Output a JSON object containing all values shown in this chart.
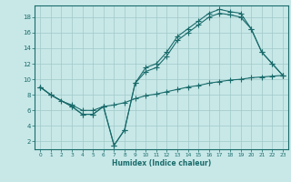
{
  "xlabel": "Humidex (Indice chaleur)",
  "bg_color": "#c8e8e8",
  "grid_color": "#a0c8c8",
  "line_color": "#1a6b6b",
  "xlim": [
    -0.5,
    23.5
  ],
  "ylim": [
    1,
    19.5
  ],
  "xticks": [
    0,
    1,
    2,
    3,
    4,
    5,
    6,
    7,
    8,
    9,
    10,
    11,
    12,
    13,
    14,
    15,
    16,
    17,
    18,
    19,
    20,
    21,
    22,
    23
  ],
  "yticks": [
    2,
    4,
    6,
    8,
    10,
    12,
    14,
    16,
    18
  ],
  "curve1_x": [
    0,
    1,
    3,
    4,
    5,
    6,
    7,
    8,
    9,
    10,
    11,
    12,
    13,
    14,
    15,
    16,
    17,
    18,
    19,
    20,
    21,
    22,
    23
  ],
  "curve1_y": [
    9,
    8,
    6.5,
    5.5,
    5.5,
    6.5,
    1.5,
    3.5,
    9.5,
    11.5,
    12,
    13.5,
    15.5,
    16.5,
    17.5,
    18.5,
    19,
    18.7,
    18.5,
    16.5,
    13.5,
    12,
    10.5
  ],
  "curve2_x": [
    0,
    1,
    3,
    4,
    5,
    6,
    7,
    8,
    9,
    10,
    11,
    12,
    13,
    14,
    15,
    16,
    17,
    18,
    19,
    20,
    21,
    22,
    23
  ],
  "curve2_y": [
    9,
    8,
    6.5,
    5.5,
    5.5,
    6.5,
    1.5,
    3.5,
    9.5,
    11,
    11.5,
    13,
    15,
    16,
    17,
    18,
    18.5,
    18.3,
    18,
    16.5,
    13.5,
    12,
    10.5
  ],
  "curve3_x": [
    0,
    1,
    2,
    3,
    4,
    5,
    6,
    7,
    8,
    9,
    10,
    11,
    12,
    13,
    14,
    15,
    16,
    17,
    18,
    19,
    20,
    21,
    22,
    23
  ],
  "curve3_y": [
    9,
    8,
    7.2,
    6.7,
    6.0,
    6.0,
    6.5,
    6.7,
    7.0,
    7.5,
    7.9,
    8.1,
    8.4,
    8.7,
    9.0,
    9.2,
    9.5,
    9.7,
    9.9,
    10.0,
    10.2,
    10.3,
    10.4,
    10.5
  ]
}
